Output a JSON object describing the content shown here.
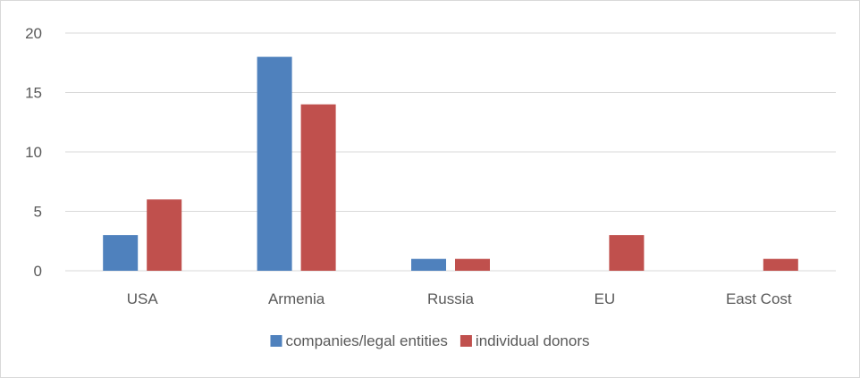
{
  "chart_data": {
    "type": "bar",
    "title": "",
    "xlabel": "",
    "ylabel": "",
    "categories": [
      "USA",
      "Armenia",
      "Russia",
      "EU",
      "East Cost"
    ],
    "series": [
      {
        "name": "companies/legal entities",
        "color": "#4f81bd",
        "values": [
          3,
          18,
          1,
          0,
          0
        ]
      },
      {
        "name": "individual donors",
        "color": "#c0504d",
        "values": [
          6,
          14,
          1,
          3,
          1
        ]
      }
    ],
    "ylim": [
      0,
      20
    ],
    "yticks": [
      0,
      5,
      10,
      15,
      20
    ],
    "grid": true,
    "legend_position": "bottom"
  }
}
